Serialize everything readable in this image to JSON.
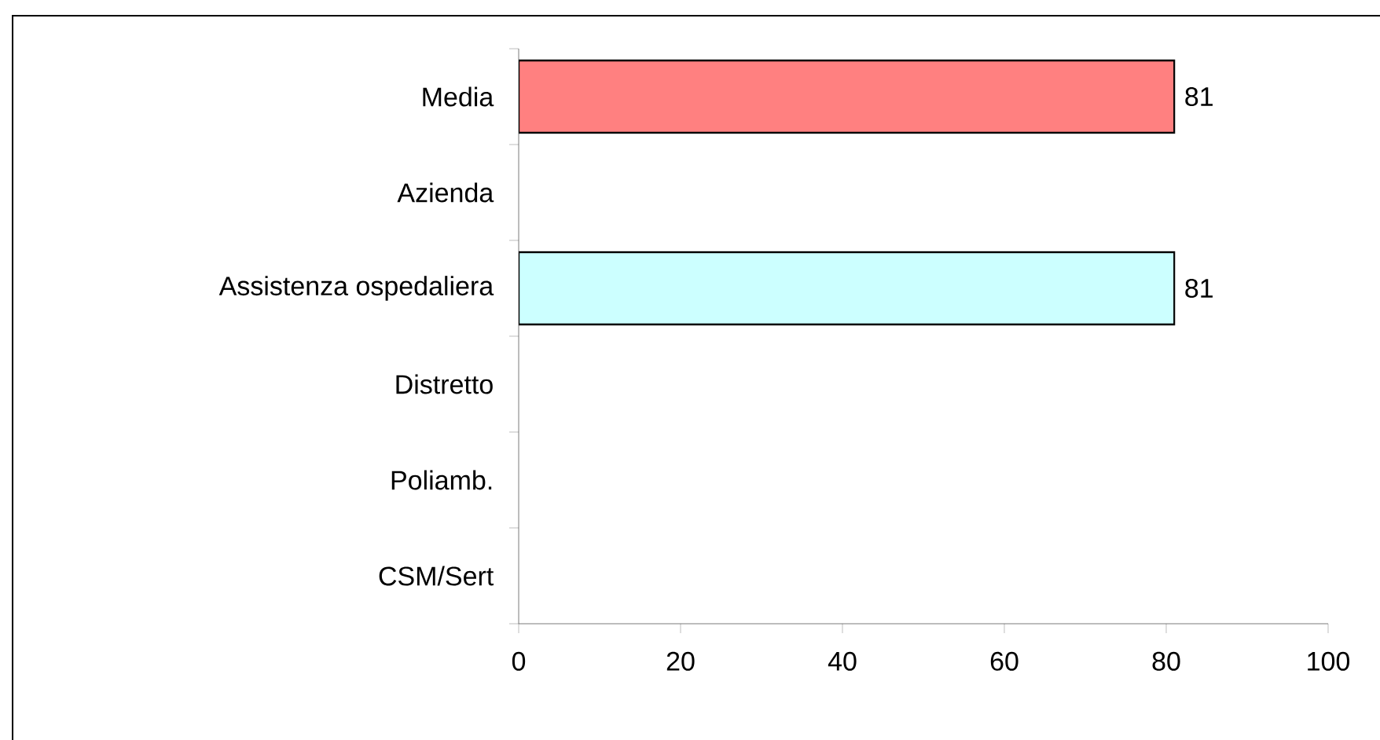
{
  "chart_data": {
    "type": "bar",
    "orientation": "horizontal",
    "categories": [
      "Media",
      "Azienda",
      "Assistenza ospedaliera",
      "Distretto",
      "Poliamb.",
      "CSM/Sert"
    ],
    "values": [
      81,
      null,
      81,
      null,
      null,
      null
    ],
    "colors": [
      "#ff8080",
      "#ffffff",
      "#ccffff",
      "#ffffff",
      "#ffffff",
      "#ffffff"
    ],
    "xlim": [
      0,
      100
    ],
    "xticks": [
      0,
      20,
      40,
      60,
      80,
      100
    ],
    "data_labels": true,
    "grid": false
  }
}
